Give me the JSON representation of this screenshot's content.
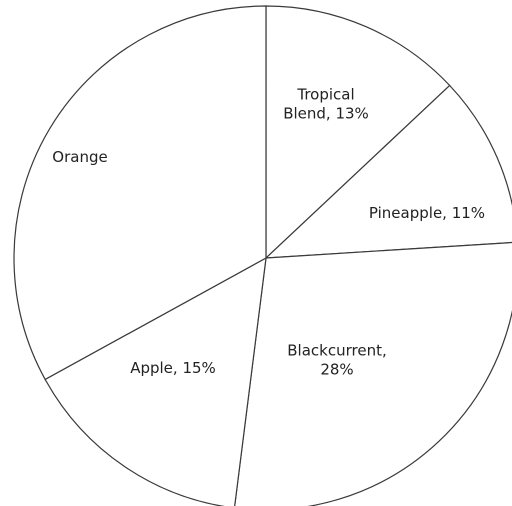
{
  "chart_data": {
    "type": "pie",
    "categories": [
      "Tropical Blend",
      "Pineapple",
      "Blackcurrent",
      "Apple",
      "Orange"
    ],
    "values": [
      13,
      11,
      28,
      15,
      33
    ],
    "labels": [
      [
        "Tropical",
        "Blend, 13%"
      ],
      [
        "Pineapple, 11%"
      ],
      [
        "Blackcurrent,",
        "28%"
      ],
      [
        "Apple, 15%"
      ],
      [
        "Orange"
      ]
    ],
    "start_angle_deg": 0,
    "direction": "clockwise",
    "slice_fill": "#ffffff",
    "slice_stroke": "#3a3a3a",
    "label_color": "#222222",
    "legend": "none"
  }
}
